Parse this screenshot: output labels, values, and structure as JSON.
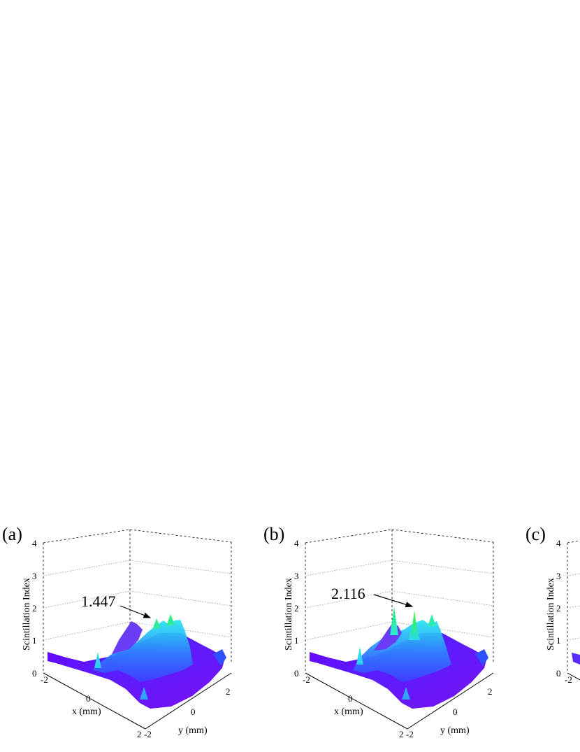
{
  "chart_data": [
    {
      "type": "surface",
      "panel_label": "(a)",
      "zlabel": "Scintillation Index",
      "xlabel": "x (mm)",
      "ylabel": "y (mm)",
      "xlim": [
        -2,
        2
      ],
      "ylim": [
        -2,
        2
      ],
      "zlim": [
        0,
        4
      ],
      "z_ticks": [
        "0",
        "1",
        "2",
        "3",
        "4"
      ],
      "x_ticks": [
        "-2",
        "0",
        "2"
      ],
      "y_ticks": [
        "-2",
        "0",
        "2"
      ],
      "grid": true,
      "annotation": {
        "text": "1.447",
        "value": 1.447,
        "x": 0.2,
        "y": 0.3
      },
      "colors": [
        "#6a00ff",
        "#3f5bff",
        "#30a0ff",
        "#2de6f0",
        "#2ef07a"
      ]
    },
    {
      "type": "surface",
      "panel_label": "(b)",
      "zlabel": "Scintillation Index",
      "xlabel": "x (mm)",
      "ylabel": "y (mm)",
      "xlim": [
        -2,
        2
      ],
      "ylim": [
        -2,
        2
      ],
      "zlim": [
        0,
        4
      ],
      "z_ticks": [
        "0",
        "1",
        "2",
        "3",
        "4"
      ],
      "x_ticks": [
        "-2",
        "0",
        "2"
      ],
      "y_ticks": [
        "-2",
        "0",
        "2"
      ],
      "grid": true,
      "annotation": {
        "text": "2.116",
        "value": 2.116,
        "x": 0.3,
        "y": 0.4
      },
      "colors": [
        "#6a00ff",
        "#3f5bff",
        "#30a0ff",
        "#2de6f0",
        "#2ef07a"
      ]
    },
    {
      "type": "surface",
      "panel_label": "(c)",
      "zlabel": "Scintillation Index",
      "zlim": [
        0,
        4
      ],
      "z_ticks": [
        "0",
        "1",
        "2",
        "3",
        "4"
      ],
      "x_ticks": [
        "-2"
      ],
      "grid": true,
      "colors": [
        "#6a00ff",
        "#3f5bff",
        "#30a0ff",
        "#2de6f0",
        "#2ef07a"
      ]
    }
  ]
}
